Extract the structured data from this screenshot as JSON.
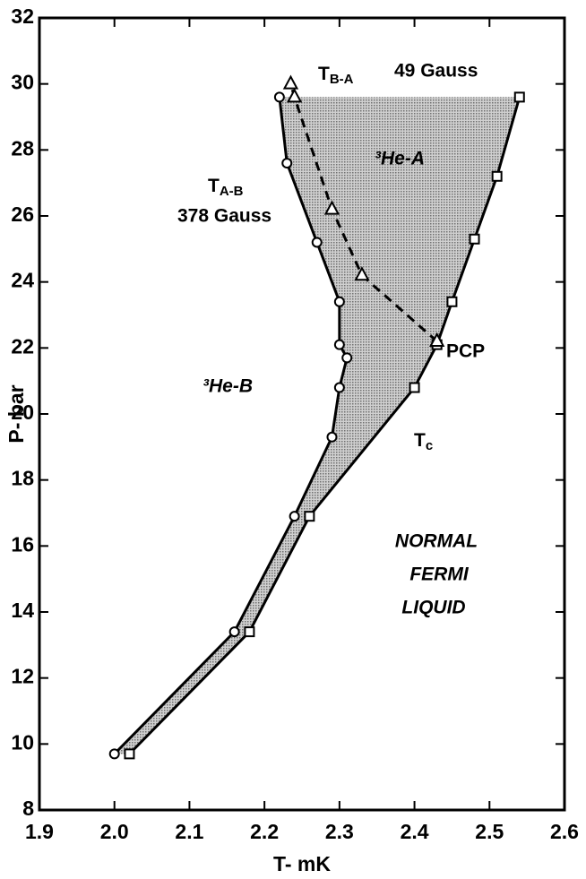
{
  "chart_data": {
    "type": "scatter",
    "x_label": "T- mK",
    "y_label": "P- bar",
    "xlim": [
      1.9,
      2.6
    ],
    "ylim": [
      8,
      32
    ],
    "xticks": [
      1.9,
      {
        "value": 2,
        "label": "2.0"
      },
      2.1,
      2.2,
      2.3,
      2.4,
      2.5,
      2.6
    ],
    "yticks": [
      8,
      10,
      12,
      14,
      16,
      18,
      20,
      22,
      24,
      26,
      28,
      30,
      32
    ],
    "series": [
      {
        "marker": "circle",
        "line": "solid",
        "color": "#000000",
        "x": [
          2.0,
          2.16,
          2.24,
          2.29,
          2.3,
          2.31,
          2.3,
          2.3,
          2.27,
          2.23,
          2.22
        ],
        "values": [
          9.7,
          13.4,
          16.9,
          19.3,
          20.8,
          21.7,
          22.1,
          23.4,
          25.2,
          27.6,
          29.6
        ]
      },
      {
        "marker": "square",
        "line": "solid",
        "color": "#000000",
        "x": [
          2.02,
          2.18,
          2.26,
          2.4,
          2.43,
          2.45,
          2.48,
          2.51,
          2.54
        ],
        "values": [
          9.7,
          13.4,
          16.9,
          20.8,
          22.1,
          23.4,
          25.3,
          27.2,
          29.6
        ]
      },
      {
        "marker": "triangle",
        "line": "dashed",
        "color": "#000000",
        "x": [
          2.43,
          2.33,
          2.29,
          2.24,
          2.235
        ],
        "values": [
          22.2,
          24.2,
          26.2,
          29.6,
          30.0
        ]
      }
    ],
    "annotations": [
      {
        "text": "T",
        "sub": "B-A"
      },
      {
        "text": "49 Gauss"
      },
      {
        "text": "³He-A"
      },
      {
        "text": "T",
        "sub": "A-B"
      },
      {
        "text": "378 Gauss"
      },
      {
        "text": "³He-B"
      },
      {
        "text": "PCP"
      },
      {
        "text": "T",
        "sub": "c"
      },
      {
        "text": "NORMAL"
      },
      {
        "text": "FERMI"
      },
      {
        "text": "LIQUID"
      }
    ]
  }
}
